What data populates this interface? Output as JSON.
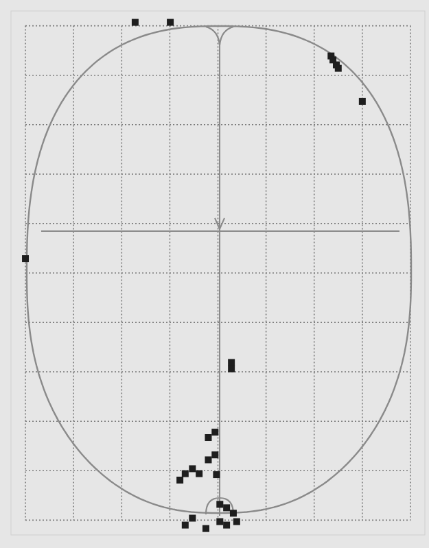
{
  "chart_data": {
    "type": "scatter",
    "x": [
      2.28,
      3.01,
      6.35,
      6.39,
      6.46,
      6.5,
      7.0,
      0.0,
      4.28,
      4.28,
      3.94,
      3.8,
      3.94,
      3.8,
      3.97,
      3.32,
      3.47,
      3.21,
      3.61,
      4.04,
      4.18,
      4.32,
      4.18,
      4.39,
      4.04,
      3.32,
      3.47,
      3.75
    ],
    "y": [
      10.07,
      10.07,
      9.39,
      9.31,
      9.21,
      9.14,
      8.47,
      5.29,
      3.19,
      3.06,
      1.78,
      1.67,
      1.32,
      1.22,
      0.92,
      0.94,
      1.04,
      0.81,
      0.94,
      0.32,
      0.25,
      0.14,
      -0.1,
      -0.03,
      -0.03,
      -0.1,
      0.04,
      -0.17
    ],
    "xlim": [
      -0.3,
      8.3
    ],
    "ylim": [
      -0.3,
      10.3
    ],
    "xticks": [
      0,
      1,
      2,
      3,
      4,
      5,
      6,
      7,
      8
    ],
    "yticks": [
      0,
      1,
      2,
      3,
      4,
      5,
      6,
      7,
      8,
      9,
      10
    ],
    "grid": true,
    "tick_labels": false,
    "marker": "square",
    "color": "#1e1e1e"
  }
}
